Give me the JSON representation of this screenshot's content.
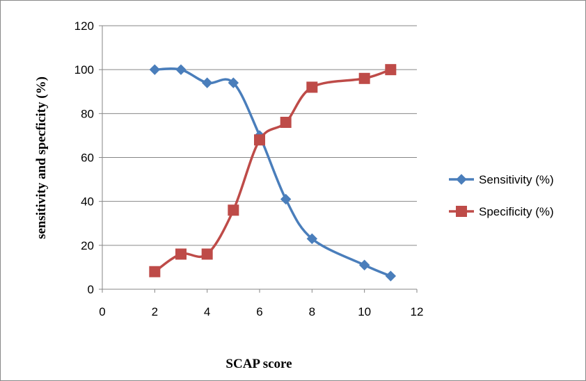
{
  "chart_data": {
    "type": "line",
    "title": "",
    "xlabel": "SCAP score",
    "ylabel": "sensitivity and specficity  (%)",
    "xlim": [
      0,
      12
    ],
    "ylim": [
      0,
      120
    ],
    "x_ticks": [
      0,
      2,
      4,
      6,
      8,
      10,
      12
    ],
    "y_ticks": [
      0,
      20,
      40,
      60,
      80,
      100,
      120
    ],
    "grid": "horizontal",
    "legend_position": "right",
    "smoothed": true,
    "series": [
      {
        "name": "Sensitivity (%)",
        "color": "#4A7EBB",
        "marker": "diamond",
        "points": [
          {
            "x": 2,
            "y": 100
          },
          {
            "x": 3,
            "y": 100
          },
          {
            "x": 4,
            "y": 94
          },
          {
            "x": 5,
            "y": 94
          },
          {
            "x": 6,
            "y": 70
          },
          {
            "x": 7,
            "y": 41
          },
          {
            "x": 8,
            "y": 23
          },
          {
            "x": 10,
            "y": 11
          },
          {
            "x": 11,
            "y": 6
          }
        ]
      },
      {
        "name": "Specificity (%)",
        "color": "#BE4B48",
        "marker": "square",
        "points": [
          {
            "x": 2,
            "y": 8
          },
          {
            "x": 3,
            "y": 16
          },
          {
            "x": 4,
            "y": 16
          },
          {
            "x": 5,
            "y": 36
          },
          {
            "x": 6,
            "y": 68
          },
          {
            "x": 7,
            "y": 76
          },
          {
            "x": 8,
            "y": 92
          },
          {
            "x": 10,
            "y": 96
          },
          {
            "x": 11,
            "y": 100
          }
        ]
      }
    ]
  }
}
